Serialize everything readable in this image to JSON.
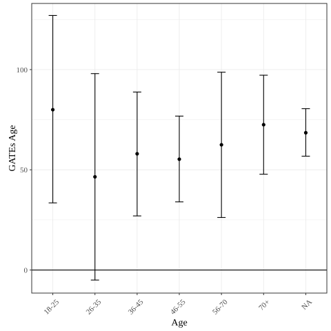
{
  "chart_data": {
    "type": "scatter",
    "subtype": "point-with-errorbars",
    "title": "",
    "xlabel": "Age",
    "ylabel": "GATEs Age",
    "categories": [
      "18-25",
      "26-35",
      "36-45",
      "46-55",
      "56-70",
      "70+",
      "NA"
    ],
    "estimate": [
      80,
      46.5,
      58,
      55.3,
      62.5,
      72.5,
      68.5
    ],
    "lower": [
      33.5,
      -5,
      27,
      34,
      26.2,
      47.8,
      56.8
    ],
    "upper": [
      127,
      98,
      88.8,
      76.8,
      98.7,
      97.2,
      80.5
    ],
    "ylim": [
      -11.5,
      133
    ],
    "yticks": [
      0,
      50,
      100
    ],
    "ytick_labels": [
      "0",
      "50",
      "100"
    ],
    "reference_line_y": 0,
    "grid": true,
    "x_tick_label_rotation": "45 degrees",
    "point_color": "#000000",
    "line_color": "#000000",
    "grid_color": "#ebebeb",
    "background_color": "#ffffff"
  }
}
